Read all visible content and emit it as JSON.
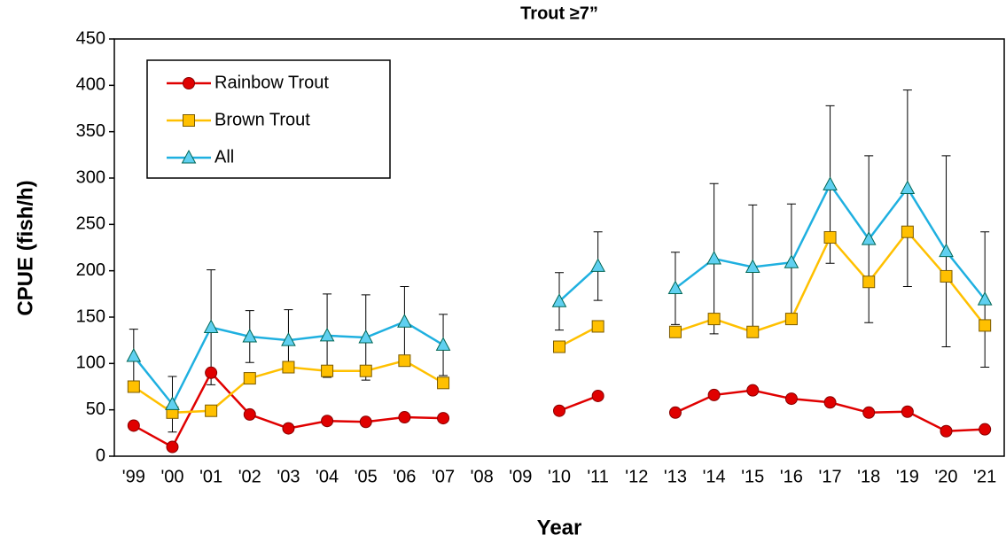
{
  "chart_data": {
    "type": "line",
    "title": "Trout ≥7”",
    "x_label": "Year",
    "y_label": "CPUE (fish/h)",
    "categories": [
      "'99",
      "'00",
      "'01",
      "'02",
      "'03",
      "'04",
      "'05",
      "'06",
      "'07",
      "'08",
      "'09",
      "'10",
      "'11",
      "'12",
      "'13",
      "'14",
      "'15",
      "'16",
      "'17",
      "'18",
      "'19",
      "'20",
      "'21"
    ],
    "series": [
      {
        "name": "Rainbow Trout",
        "color": "#e00000",
        "marker": "circle",
        "values": [
          33,
          10,
          90,
          45,
          30,
          38,
          37,
          42,
          41,
          null,
          null,
          49,
          65,
          null,
          47,
          66,
          71,
          62,
          58,
          47,
          48,
          27,
          29
        ]
      },
      {
        "name": "Brown Trout",
        "color": "#ffc000",
        "marker": "square",
        "values": [
          75,
          47,
          49,
          84,
          96,
          92,
          92,
          103,
          79,
          null,
          null,
          118,
          140,
          null,
          134,
          148,
          134,
          148,
          236,
          188,
          242,
          194,
          141
        ]
      },
      {
        "name": "All",
        "color": "#1fb0e0",
        "marker": "triangle",
        "values": [
          108,
          56,
          139,
          129,
          125,
          130,
          128,
          145,
          120,
          null,
          null,
          167,
          205,
          null,
          181,
          213,
          204,
          209,
          293,
          234,
          289,
          221,
          169
        ],
        "errors": [
          29,
          30,
          62,
          28,
          33,
          45,
          46,
          38,
          33,
          null,
          null,
          31,
          37,
          null,
          39,
          81,
          67,
          63,
          85,
          90,
          106,
          103,
          73
        ]
      }
    ],
    "ylim": [
      0,
      450
    ],
    "yticks": [
      0,
      50,
      100,
      150,
      200,
      250,
      300,
      350,
      400,
      450
    ]
  }
}
